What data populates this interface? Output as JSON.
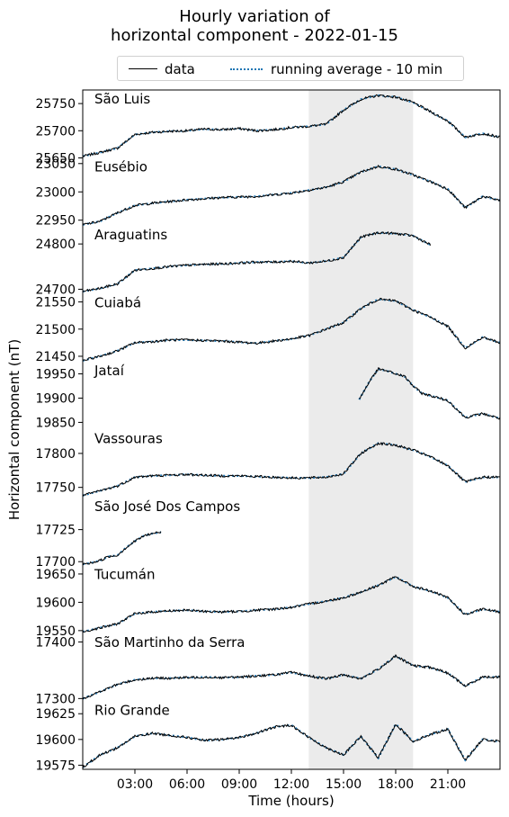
{
  "chart_data": {
    "type": "line",
    "title_line1": "Hourly variation of",
    "title_line2": "horizontal component - 2022-01-15",
    "xlabel": "Time (hours)",
    "ylabel": "Horizontal component (nT)",
    "xlim": [
      0,
      24
    ],
    "x_ticks": [
      3,
      6,
      9,
      12,
      15,
      18,
      21
    ],
    "x_tick_labels": [
      "03:00",
      "06:00",
      "09:00",
      "12:00",
      "15:00",
      "18:00",
      "21:00"
    ],
    "shaded_interval": [
      13,
      19
    ],
    "legend": {
      "data": "data",
      "running_average": "running average - 10 min",
      "placement": "top-center"
    },
    "colors": {
      "data": "#000000",
      "running_average": "#1f77b4",
      "shade": "#ebebeb"
    },
    "panels": [
      {
        "name": "São Luis",
        "ylim": [
          25650,
          25775
        ],
        "ticks": [
          25650,
          25700,
          25750
        ],
        "tick_labels": [
          "25650",
          "25700",
          "25750"
        ],
        "x": [
          0,
          1,
          2,
          3,
          4,
          5,
          6,
          7,
          8,
          9,
          10,
          11,
          12,
          13,
          14,
          15,
          16,
          17,
          18,
          19,
          20,
          21,
          22,
          23,
          24
        ],
        "y": [
          25653,
          25660,
          25668,
          25693,
          25697,
          25699,
          25700,
          25703,
          25702,
          25704,
          25700,
          25702,
          25706,
          25708,
          25712,
          25738,
          25758,
          25765,
          25762,
          25752,
          25735,
          25718,
          25688,
          25695,
          25688
        ]
      },
      {
        "name": "Eusébio",
        "ylim": [
          22940,
          23060
        ],
        "ticks": [
          22950,
          23000,
          23050
        ],
        "tick_labels": [
          "22950",
          "23000",
          "23050"
        ],
        "x": [
          0,
          1,
          2,
          3,
          4,
          5,
          6,
          7,
          8,
          9,
          10,
          11,
          12,
          13,
          14,
          15,
          16,
          17,
          18,
          19,
          20,
          21,
          22,
          23,
          24
        ],
        "y": [
          22942,
          22948,
          22963,
          22976,
          22980,
          22983,
          22986,
          22988,
          22990,
          22991,
          22992,
          22995,
          22998,
          23003,
          23008,
          23018,
          23035,
          23045,
          23040,
          23030,
          23018,
          23005,
          22972,
          22992,
          22985
        ]
      },
      {
        "name": "Araguatins",
        "ylim": [
          24690,
          24840
        ],
        "ticks": [
          24700,
          24800
        ],
        "tick_labels": [
          "24700",
          "24800"
        ],
        "x": [
          0,
          1,
          2,
          3,
          4,
          5,
          6,
          7,
          8,
          9,
          10,
          11,
          12,
          13,
          14,
          15,
          16,
          17,
          18,
          19,
          20
        ],
        "y": [
          24695,
          24702,
          24712,
          24742,
          24746,
          24750,
          24753,
          24755,
          24756,
          24758,
          24760,
          24760,
          24762,
          24758,
          24762,
          24770,
          24815,
          24825,
          24823,
          24818,
          24798
        ]
      },
      {
        "name": "Cuiabá",
        "ylim": [
          21440,
          21565
        ],
        "ticks": [
          21450,
          21500,
          21550
        ],
        "tick_labels": [
          "21450",
          "21500",
          "21550"
        ],
        "x": [
          0,
          1,
          2,
          3,
          4,
          5,
          6,
          7,
          8,
          9,
          10,
          11,
          12,
          13,
          14,
          15,
          16,
          17,
          18,
          19,
          20,
          21,
          22,
          23,
          24
        ],
        "y": [
          21442,
          21450,
          21460,
          21475,
          21477,
          21480,
          21480,
          21479,
          21478,
          21476,
          21474,
          21478,
          21482,
          21488,
          21500,
          21512,
          21538,
          21555,
          21552,
          21535,
          21522,
          21505,
          21465,
          21485,
          21475
        ]
      },
      {
        "name": "Jataí",
        "ylim": [
          19835,
          19975
        ],
        "ticks": [
          19850,
          19900,
          19950
        ],
        "tick_labels": [
          "19850",
          "19900",
          "19950"
        ],
        "x": [
          15.9,
          16.5,
          17,
          17.5,
          18,
          18.5,
          19,
          19.5,
          20,
          21,
          22,
          23,
          24
        ],
        "y": [
          19897,
          19935,
          19960,
          19956,
          19950,
          19945,
          19925,
          19910,
          19905,
          19895,
          19860,
          19868,
          19858
        ]
      },
      {
        "name": "Vassouras",
        "ylim": [
          17735,
          17835
        ],
        "ticks": [
          17750,
          17800
        ],
        "tick_labels": [
          "17750",
          "17800"
        ],
        "x": [
          0,
          1,
          2,
          3,
          4,
          5,
          6,
          7,
          8,
          9,
          10,
          11,
          12,
          13,
          14,
          15,
          16,
          17,
          18,
          19,
          20,
          21,
          22,
          23,
          24
        ],
        "y": [
          17738,
          17745,
          17752,
          17765,
          17767,
          17768,
          17769,
          17768,
          17767,
          17767,
          17766,
          17765,
          17764,
          17764,
          17765,
          17770,
          17800,
          17815,
          17812,
          17805,
          17795,
          17782,
          17758,
          17765,
          17765
        ]
      },
      {
        "name": "São José Dos Campos",
        "ylim": [
          17697,
          17750
        ],
        "ticks": [
          17700,
          17725
        ],
        "tick_labels": [
          "17700",
          "17725"
        ],
        "x": [
          0,
          0.5,
          1,
          1.5,
          2,
          2.5,
          3,
          3.5,
          4,
          4.5
        ],
        "y": [
          17698,
          17699,
          17701,
          17704,
          17705,
          17711,
          17716,
          17720,
          17722,
          17723
        ]
      },
      {
        "name": "Tucumán",
        "ylim": [
          19545,
          19665
        ],
        "ticks": [
          19550,
          19600,
          19650
        ],
        "tick_labels": [
          "19550",
          "19600",
          "19650"
        ],
        "x": [
          0,
          1,
          2,
          3,
          4,
          5,
          6,
          7,
          8,
          9,
          10,
          11,
          12,
          13,
          14,
          15,
          16,
          17,
          18,
          19,
          20,
          21,
          22,
          23,
          24
        ],
        "y": [
          19548,
          19555,
          19562,
          19580,
          19583,
          19585,
          19586,
          19584,
          19583,
          19584,
          19586,
          19588,
          19591,
          19597,
          19602,
          19608,
          19618,
          19630,
          19645,
          19628,
          19620,
          19608,
          19578,
          19588,
          19583
        ]
      },
      {
        "name": "São Martinho da Serra",
        "ylim": [
          17295,
          17415
        ],
        "ticks": [
          17300,
          17400
        ],
        "tick_labels": [
          "17300",
          "17400"
        ],
        "x": [
          0,
          1,
          2,
          3,
          4,
          5,
          6,
          7,
          8,
          9,
          10,
          11,
          12,
          13,
          14,
          15,
          16,
          17,
          18,
          19,
          20,
          21,
          22,
          23,
          24
        ],
        "y": [
          17300,
          17312,
          17325,
          17333,
          17336,
          17336,
          17337,
          17338,
          17337,
          17338,
          17340,
          17342,
          17346,
          17340,
          17335,
          17342,
          17335,
          17352,
          17375,
          17358,
          17355,
          17345,
          17322,
          17338,
          17338
        ]
      },
      {
        "name": "Rio Grande",
        "ylim": [
          19571,
          19637
        ],
        "ticks": [
          19575,
          19600,
          19625
        ],
        "tick_labels": [
          "19575",
          "19600",
          "19625"
        ],
        "x": [
          0,
          1,
          2,
          3,
          4,
          5,
          6,
          7,
          8,
          9,
          10,
          11,
          12,
          13,
          14,
          15,
          16,
          17,
          18,
          19,
          20,
          21,
          22,
          23,
          24
        ],
        "y": [
          19573,
          19585,
          19592,
          19603,
          19606,
          19604,
          19602,
          19599,
          19600,
          19602,
          19606,
          19612,
          19614,
          19602,
          19592,
          19585,
          19603,
          19582,
          19615,
          19598,
          19605,
          19610,
          19580,
          19600,
          19598
        ]
      }
    ]
  }
}
